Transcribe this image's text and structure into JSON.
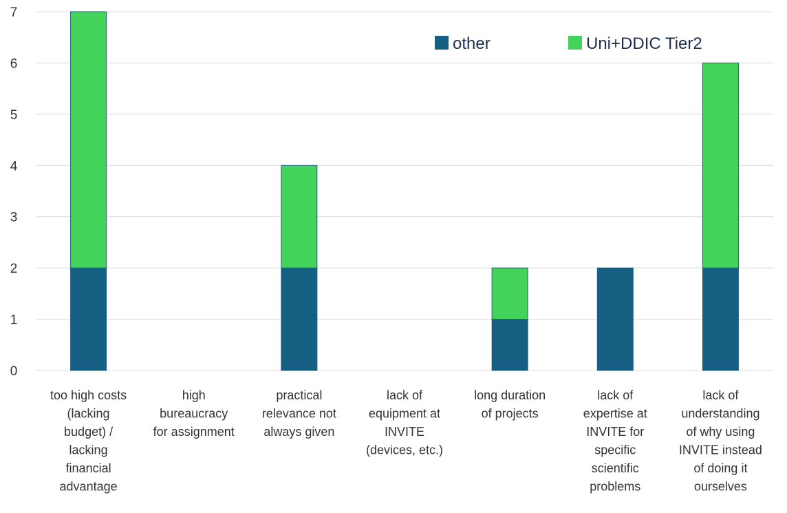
{
  "chart_data": {
    "type": "bar",
    "stacked": true,
    "categories": [
      [
        "too high costs",
        "(lacking",
        "budget) /",
        "lacking",
        "financial",
        "advantage"
      ],
      [
        "high",
        "bureaucracy",
        "for assignment"
      ],
      [
        "practical",
        "relevance not",
        "always given"
      ],
      [
        "lack of",
        "equipment at",
        "INVITE",
        "(devices, etc.)"
      ],
      [
        "long duration",
        "of projects"
      ],
      [
        "lack of",
        "expertise at",
        "INVITE for",
        "specific",
        "scientific",
        "problems"
      ],
      [
        "lack of",
        "understanding",
        "of why using",
        "INVITE instead",
        "of doing it",
        "ourselves"
      ]
    ],
    "series": [
      {
        "name": "other",
        "color": "#155f82",
        "values": [
          2,
          0,
          2,
          0,
          1,
          2,
          2
        ]
      },
      {
        "name": "Uni+DDIC Tier2",
        "color": "#44d35a",
        "values": [
          5,
          0,
          2,
          0,
          1,
          0,
          4
        ]
      }
    ],
    "ylim": [
      0,
      7
    ],
    "yticks": [
      "0",
      "1",
      "2",
      "3",
      "4",
      "5",
      "6",
      "7"
    ],
    "grid": true,
    "legend_position": "top-right"
  }
}
